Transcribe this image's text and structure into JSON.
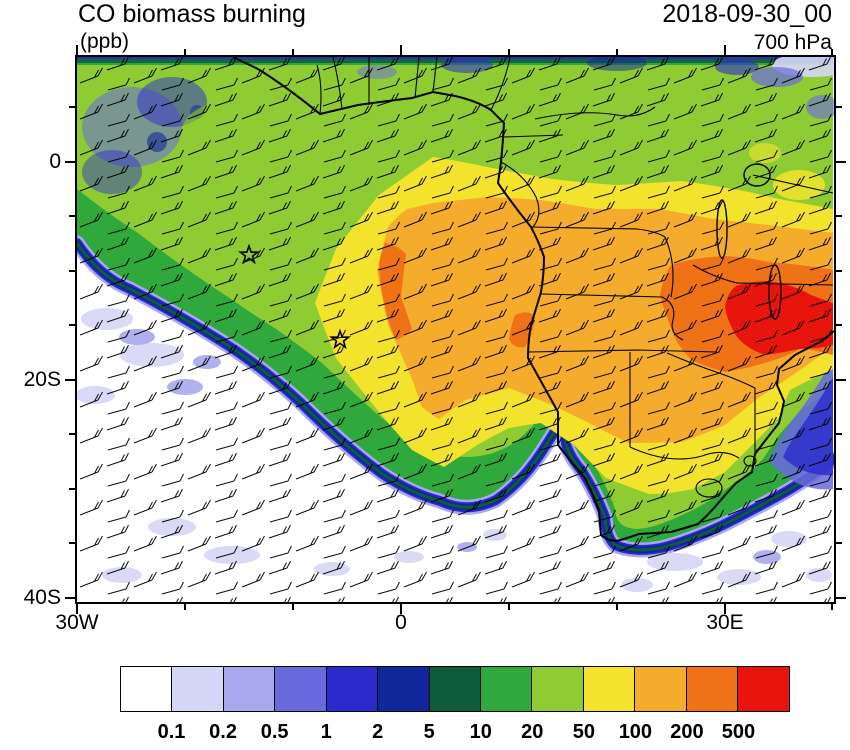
{
  "header": {
    "title": "CO biomass burning",
    "units_label": "(ppb)",
    "datetime_label": "2018-09-30_00",
    "level_label": "700 hPa"
  },
  "axes": {
    "y_tick_labels": [
      "0",
      "20S",
      "40S"
    ],
    "x_tick_labels": [
      "30W",
      "0",
      "30E"
    ]
  },
  "colorbar": {
    "tick_labels": [
      "0.1",
      "0.2",
      "0.5",
      "1",
      "2",
      "5",
      "10",
      "20",
      "50",
      "100",
      "200",
      "500"
    ],
    "colors": [
      "#FFFFFF",
      "#D6D6F7",
      "#A8A8EE",
      "#6A6ADF",
      "#2B2BCD",
      "#10269B",
      "#0E5C3A",
      "#2FA83C",
      "#8FCC33",
      "#F3E32C",
      "#F5AC2C",
      "#EF7216",
      "#E8150D"
    ]
  },
  "chart_data": {
    "type": "heatmap",
    "title": "CO biomass burning",
    "units": "ppb",
    "level": "700 hPa",
    "valid_time": "2018-09-30_00",
    "x_axis": {
      "tick_labels": [
        "30W",
        "0",
        "30E"
      ],
      "approx_lon_range_deg": [
        -30,
        40
      ]
    },
    "y_axis": {
      "tick_labels": [
        "0",
        "20S",
        "40S"
      ],
      "approx_lat_range_deg": [
        -40,
        10
      ]
    },
    "contour_levels_ppb": [
      0.1,
      0.2,
      0.5,
      1,
      2,
      5,
      10,
      20,
      50,
      100,
      200,
      500
    ],
    "palette": [
      "#FFFFFF",
      "#D6D6F7",
      "#A8A8EE",
      "#6A6ADF",
      "#2B2BCD",
      "#10269B",
      "#0E5C3A",
      "#2FA83C",
      "#8FCC33",
      "#F3E32C",
      "#F5AC2C",
      "#EF7216",
      "#E8150D"
    ],
    "overlays": [
      "wind barbs",
      "coastlines",
      "country borders",
      "lakes",
      "two star markers"
    ],
    "features": [
      {
        "name": "maximum, >500 ppb (red core)",
        "approx_lon_lat": [
          34,
          -14
        ]
      },
      {
        "name": "200-500 ppb patches",
        "region": "eastern southern Africa (~25E-38E, 9S-19S) and narrow streak near 0E, 8S-16S"
      },
      {
        "name": "100-200 ppb plume",
        "region": "Angola/Congo/Zambia extending west over the South Atlantic to ~5W, between ~4S and 25S"
      },
      {
        "name": "50-100 ppb ring",
        "region": "surrounding the orange plume, reaching ~8W and south to ~30S over land"
      },
      {
        "name": "10-50 ppb background",
        "region": "tropical band across Gulf of Guinea, Congo basin and East Africa"
      },
      {
        "name": "clean air <0.1 ppb",
        "region": "southwestern South Atlantic and ocean south of South Africa"
      },
      {
        "name": "sharp plume edge with 0.1-10 ppb fringe",
        "region": "diagonal from ~25W,8S to ~3E,31S hooking back to the Namibian coast"
      },
      {
        "name": "star markers",
        "approx_lon_lat": [
          [
            -14.3,
            -8
          ],
          [
            -5.7,
            -16
          ]
        ]
      }
    ]
  }
}
